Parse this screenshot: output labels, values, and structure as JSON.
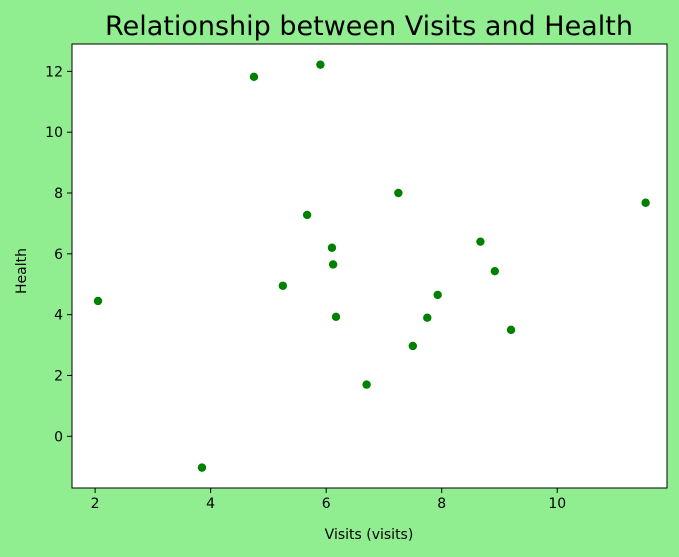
{
  "chart_data": {
    "type": "scatter",
    "title": "Relationship between Visits and Health",
    "xlabel": "Visits (visits)",
    "ylabel": "Health",
    "xlim": [
      1.6,
      11.9
    ],
    "ylim": [
      -1.7,
      12.9
    ],
    "xticks": [
      2,
      4,
      6,
      8,
      10
    ],
    "yticks": [
      0,
      2,
      4,
      6,
      8,
      10,
      12
    ],
    "grid": false,
    "legend": "none",
    "colors": {
      "page_background": "#90ee90",
      "plot_background": "#ffffff",
      "marker": "#008000",
      "axis": "#000000"
    },
    "points": [
      {
        "x": 2.05,
        "y": 4.45
      },
      {
        "x": 3.85,
        "y": -1.03
      },
      {
        "x": 4.75,
        "y": 11.82
      },
      {
        "x": 5.25,
        "y": 4.95
      },
      {
        "x": 5.67,
        "y": 7.28
      },
      {
        "x": 5.9,
        "y": 12.22
      },
      {
        "x": 6.1,
        "y": 6.2
      },
      {
        "x": 6.12,
        "y": 5.65
      },
      {
        "x": 6.17,
        "y": 3.93
      },
      {
        "x": 6.7,
        "y": 1.7
      },
      {
        "x": 7.25,
        "y": 8.0
      },
      {
        "x": 7.5,
        "y": 2.97
      },
      {
        "x": 7.75,
        "y": 3.9
      },
      {
        "x": 7.93,
        "y": 4.65
      },
      {
        "x": 8.67,
        "y": 6.4
      },
      {
        "x": 8.92,
        "y": 5.43
      },
      {
        "x": 9.2,
        "y": 3.5
      },
      {
        "x": 11.53,
        "y": 7.68
      }
    ]
  }
}
